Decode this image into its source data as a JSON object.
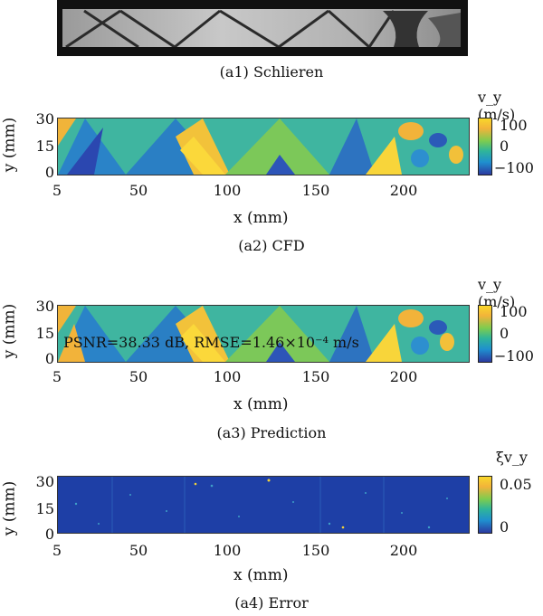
{
  "panels": {
    "a1": {
      "caption": "(a1) Schlieren"
    },
    "a2": {
      "caption": "(a2) CFD",
      "colorbar_title": "v_y (m/s)",
      "colorbar_ticks": [
        "100",
        "0",
        "−100"
      ]
    },
    "a3": {
      "caption": "(a3) Prediction",
      "colorbar_title": "v_y (m/s)",
      "colorbar_ticks": [
        "100",
        "0",
        "−100"
      ],
      "metrics": "PSNR=38.33 dB, RMSE=1.46×10⁻⁴ m/s"
    },
    "a4": {
      "caption": "(a4) Error",
      "colorbar_title": "ξv_y",
      "colorbar_ticks": [
        "0.05",
        "0"
      ]
    }
  },
  "axes": {
    "x_label": "x (mm)",
    "y_label": "y (mm)",
    "x_ticks": [
      "5",
      "50",
      "100",
      "150",
      "200"
    ],
    "y_ticks": [
      "30",
      "15",
      "0"
    ]
  },
  "colors": {
    "high": "#f9d72a",
    "mid": "#2fb59a",
    "low": "#2b3aa0",
    "error_bg": "#1e3fa6"
  }
}
